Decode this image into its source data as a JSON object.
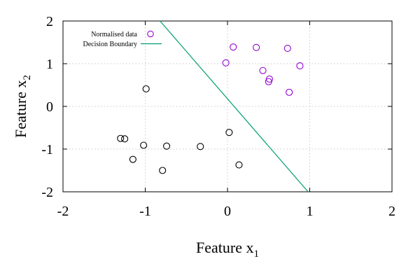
{
  "chart_data": {
    "type": "scatter",
    "xlabel": "Feature x",
    "xlabel_sub": "1",
    "ylabel": "Feature x",
    "ylabel_sub": "2",
    "xlim": [
      -2,
      2
    ],
    "ylim": [
      -2,
      2
    ],
    "xticks": [
      -2,
      -1,
      0,
      1,
      2
    ],
    "yticks": [
      -2,
      -1,
      0,
      1,
      2
    ],
    "x_tick_labels": [
      "-2",
      "-1",
      "0",
      "1",
      "2"
    ],
    "y_tick_labels": [
      "-2",
      "-1",
      "0",
      "1",
      "2"
    ],
    "grid": true,
    "legend_position": "top-left",
    "series": [
      {
        "name": "",
        "color": "#000000",
        "marker": "open-circle",
        "points": [
          [
            -1.3,
            -0.75
          ],
          [
            -1.25,
            -0.76
          ],
          [
            -1.02,
            -0.91
          ],
          [
            -1.15,
            -1.24
          ],
          [
            -0.99,
            0.41
          ],
          [
            -0.74,
            -0.93
          ],
          [
            -0.79,
            -1.5
          ],
          [
            -0.33,
            -0.94
          ],
          [
            0.02,
            -0.61
          ],
          [
            0.14,
            -1.37
          ]
        ]
      },
      {
        "name": "Normalised data",
        "color": "#9400d3",
        "marker": "open-circle",
        "points": [
          [
            -0.02,
            1.02
          ],
          [
            0.07,
            1.39
          ],
          [
            0.35,
            1.38
          ],
          [
            0.43,
            0.84
          ],
          [
            0.5,
            0.58
          ],
          [
            0.51,
            0.64
          ],
          [
            0.73,
            1.36
          ],
          [
            0.75,
            0.33
          ],
          [
            0.88,
            0.95
          ]
        ]
      }
    ],
    "lines": [
      {
        "name": "Decision Boundary",
        "color": "#009e73",
        "points": [
          [
            -0.82,
            2.0
          ],
          [
            0.98,
            -2.0
          ]
        ]
      }
    ]
  }
}
